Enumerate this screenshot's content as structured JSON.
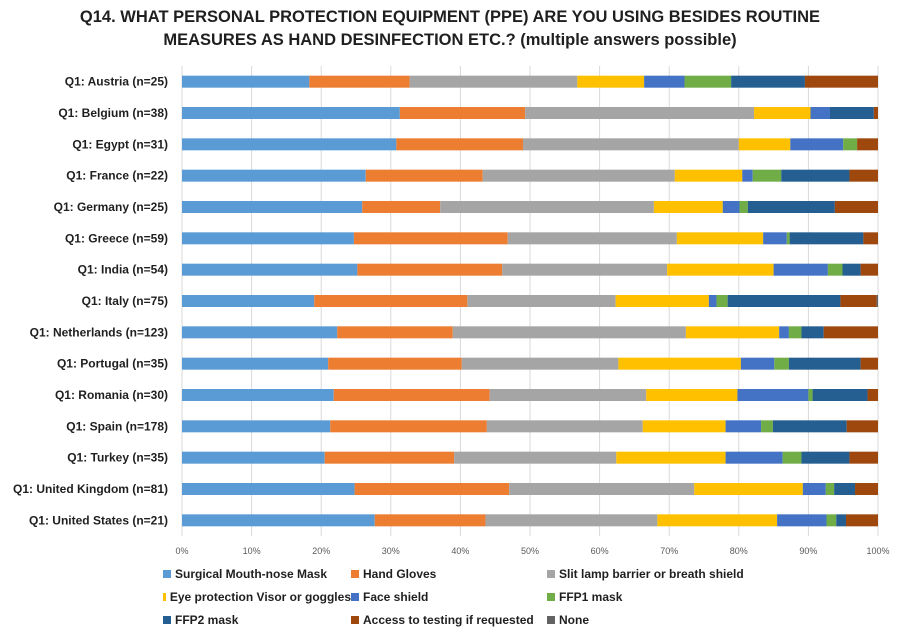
{
  "chart_data": {
    "type": "bar",
    "orientation": "horizontal",
    "stacked": "percent",
    "title_lines": [
      "Q14. WHAT PERSONAL PROTECTION EQUIPMENT (PPE) ARE YOU USING BESIDES ROUTINE",
      "MEASURES AS HAND DESINFECTION ETC.? (multiple answers possible)"
    ],
    "categories": [
      "Q1: Austria (n=25)",
      "Q1: Belgium (n=38)",
      "Q1: Egypt (n=31)",
      "Q1: France (n=22)",
      "Q1: Germany (n=25)",
      "Q1: Greece (n=59)",
      "Q1: India (n=54)",
      "Q1: Italy (n=75)",
      "Q1: Netherlands (n=123)",
      "Q1: Portugal (n=35)",
      "Q1: Romania (n=30)",
      "Q1: Spain (n=178)",
      "Q1: Turkey (n=35)",
      "Q1: United Kingdom (n=81)",
      "Q1: United States  (n=21)"
    ],
    "xlim": [
      0,
      100
    ],
    "xticks": [
      "0%",
      "10%",
      "20%",
      "30%",
      "40%",
      "50%",
      "60%",
      "70%",
      "80%",
      "90%",
      "100%"
    ],
    "grid": true,
    "legend_position": "bottom",
    "series": [
      {
        "name": "Surgical Mouth-nose Mask",
        "color": "#5b9bd5",
        "values": [
          18.3,
          31.3,
          30.8,
          26.4,
          25.9,
          24.7,
          25.2,
          19.0,
          22.3,
          21.0,
          21.8,
          21.3,
          20.5,
          24.8,
          27.7
        ]
      },
      {
        "name": "Hand Gloves",
        "color": "#ed7d31",
        "values": [
          14.4,
          18.0,
          18.2,
          16.8,
          11.2,
          22.1,
          20.8,
          22.0,
          16.6,
          19.2,
          22.4,
          22.5,
          18.6,
          22.2,
          15.9
        ]
      },
      {
        "name": "Slit lamp barrier or breath shield",
        "color": "#a5a5a5",
        "values": [
          24.1,
          32.9,
          31.0,
          27.6,
          30.7,
          24.3,
          23.7,
          21.3,
          33.5,
          22.5,
          22.5,
          22.4,
          23.3,
          26.6,
          24.7
        ]
      },
      {
        "name": "Eye protection Visor or goggles",
        "color": "#ffc000",
        "values": [
          9.6,
          8.1,
          7.4,
          9.7,
          9.9,
          12.4,
          15.3,
          13.4,
          13.4,
          17.6,
          13.1,
          11.9,
          15.7,
          15.6,
          17.2
        ]
      },
      {
        "name": "Face shield",
        "color": "#4472c4",
        "values": [
          5.8,
          2.8,
          7.6,
          1.5,
          2.4,
          3.4,
          7.8,
          1.1,
          1.4,
          4.8,
          10.2,
          5.1,
          8.2,
          3.3,
          7.1
        ]
      },
      {
        "name": "FFP1 mask",
        "color": "#70ad47",
        "values": [
          6.7,
          0,
          2.0,
          4.1,
          1.2,
          0.4,
          2.1,
          1.6,
          1.8,
          2.1,
          0.6,
          1.7,
          2.7,
          1.2,
          1.4
        ]
      },
      {
        "name": "FFP2 mask",
        "color": "#255e91",
        "values": [
          10.6,
          6.3,
          0,
          9.8,
          12.5,
          10.6,
          2.6,
          16.2,
          3.2,
          10.3,
          7.9,
          10.6,
          6.9,
          3.0,
          1.4
        ]
      },
      {
        "name": "Access to testing if requested",
        "color": "#9e480e",
        "values": [
          10.5,
          0.6,
          3.0,
          4.1,
          6.2,
          2.1,
          2.5,
          5.2,
          7.8,
          2.5,
          1.5,
          4.5,
          4.1,
          3.3,
          4.6
        ]
      },
      {
        "name": "None",
        "color": "#636363",
        "values": [
          0,
          0,
          0,
          0,
          0,
          0,
          0,
          0.2,
          0,
          0,
          0,
          0,
          0,
          0,
          0
        ]
      }
    ]
  }
}
